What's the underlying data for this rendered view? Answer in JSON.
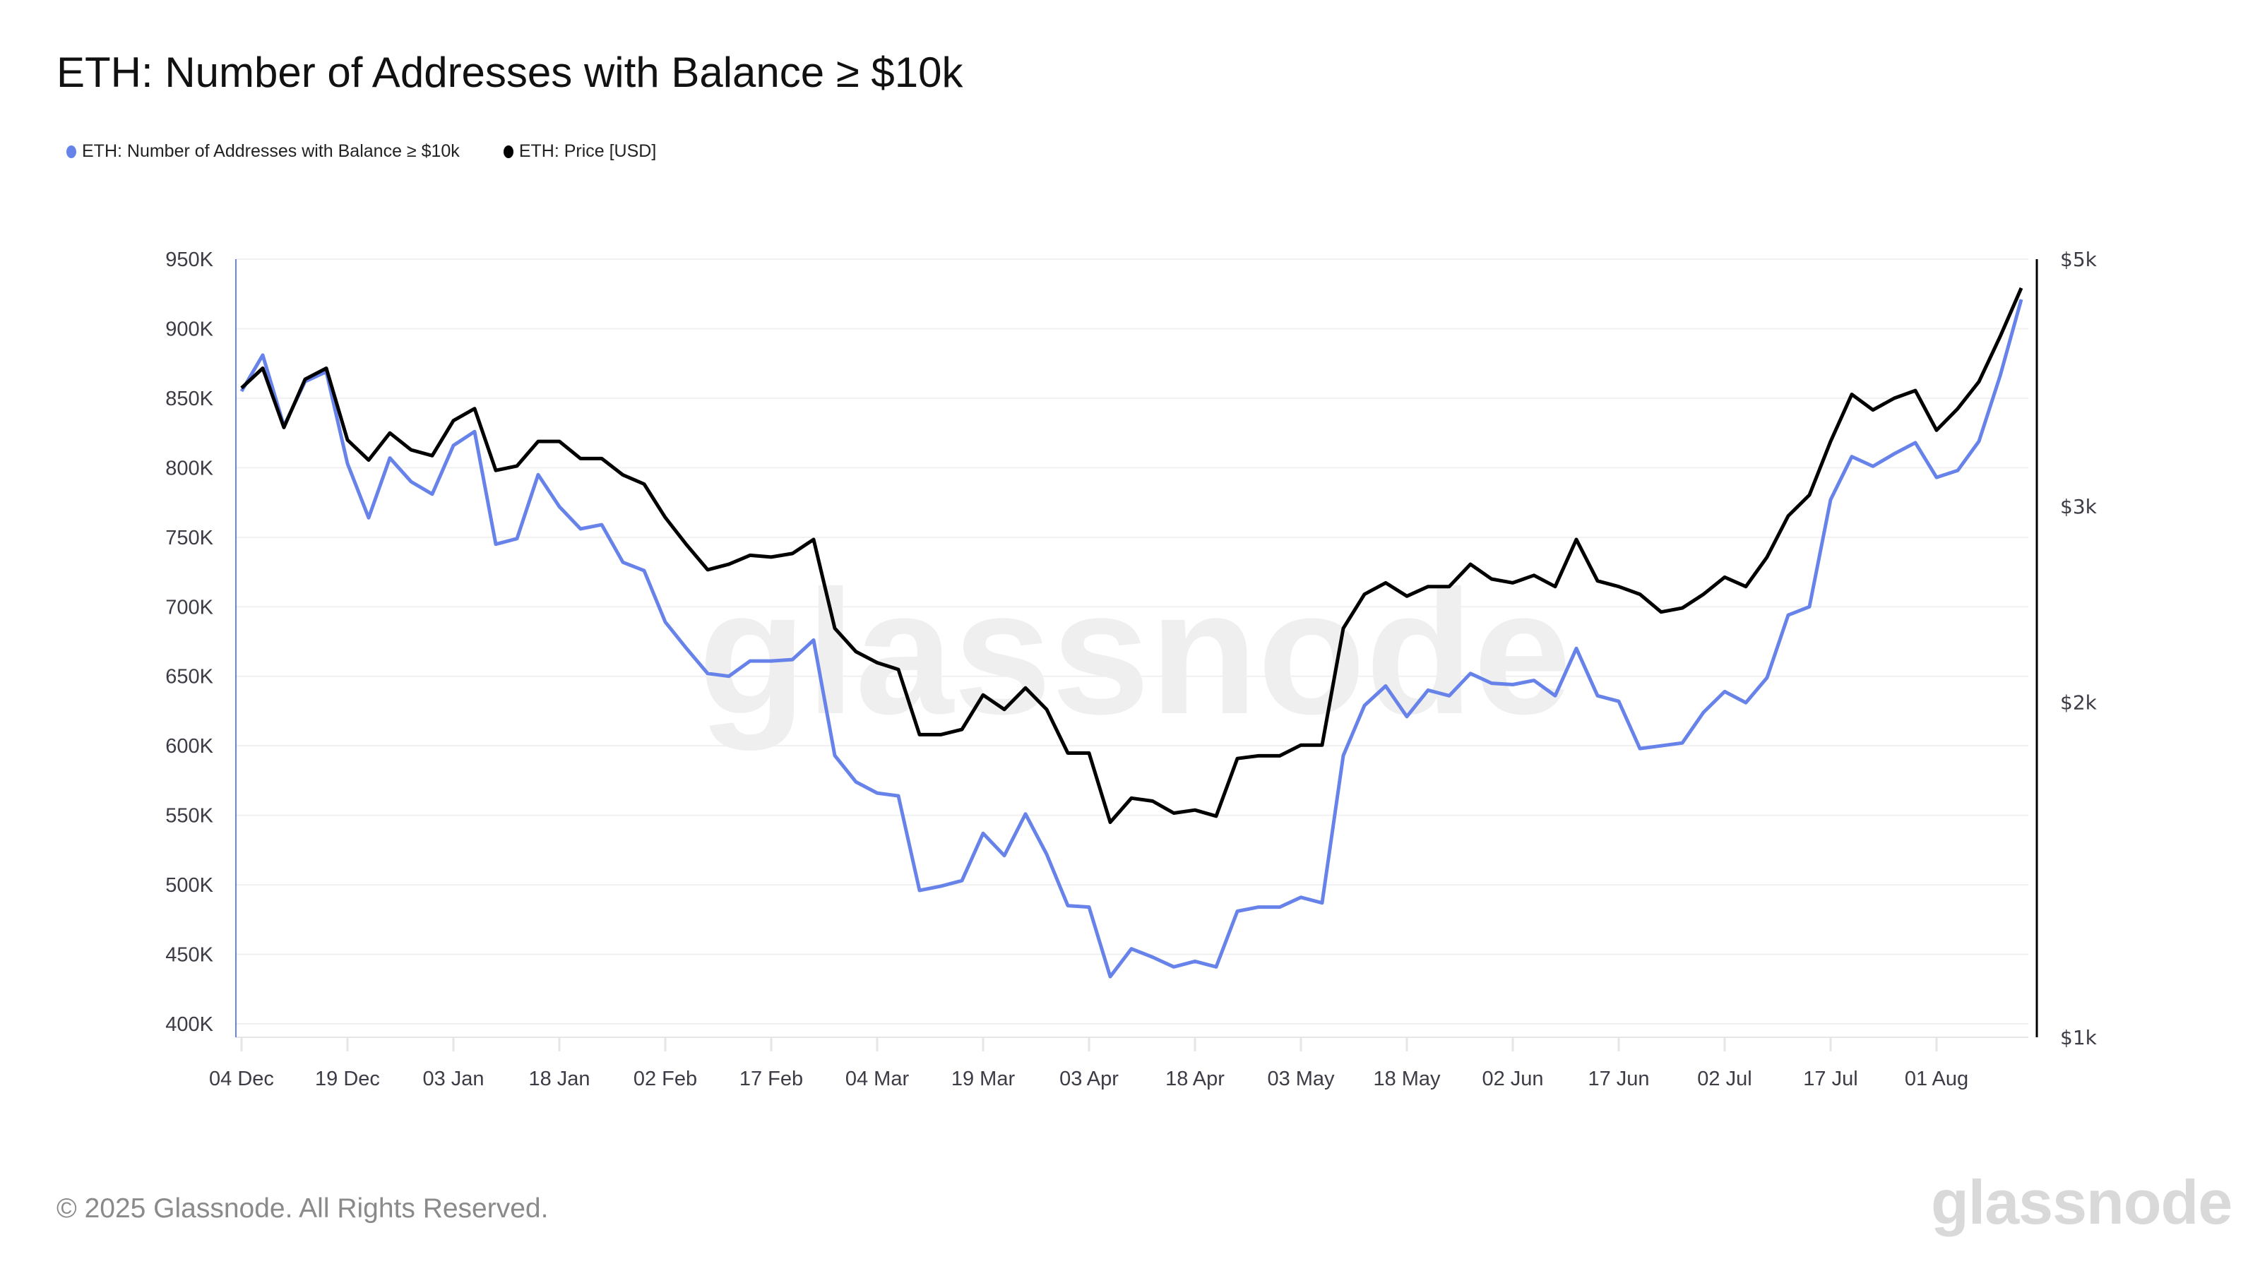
{
  "title": "ETH: Number of Addresses with Balance ≥ $10k",
  "legend": [
    {
      "label": "ETH: Number of Addresses with Balance ≥ $10k",
      "color": "#6783e9"
    },
    {
      "label": "ETH: Price [USD]",
      "color": "#000000"
    }
  ],
  "footer": "© 2025 Glassnode. All Rights Reserved.",
  "logo": "glassnode",
  "watermark": "glassnode",
  "chart_data": {
    "type": "line",
    "title": "ETH: Number of Addresses with Balance ≥ $10k",
    "grid": true,
    "legend_position": "top-left",
    "x_ticks": [
      "04 Dec",
      "19 Dec",
      "03 Jan",
      "18 Jan",
      "02 Feb",
      "17 Feb",
      "04 Mar",
      "19 Mar",
      "03 Apr",
      "18 Apr",
      "03 May",
      "18 May",
      "02 Jun",
      "17 Jun",
      "02 Jul",
      "17 Jul",
      "01 Aug"
    ],
    "x_tick_dates": [
      "2024-12-04",
      "2024-12-19",
      "2025-01-03",
      "2025-01-18",
      "2025-02-02",
      "2025-02-17",
      "2025-03-04",
      "2025-03-19",
      "2025-04-03",
      "2025-04-18",
      "2025-05-03",
      "2025-05-18",
      "2025-06-02",
      "2025-06-17",
      "2025-07-02",
      "2025-07-17",
      "2025-08-01"
    ],
    "y_left": {
      "ticks": [
        400,
        450,
        500,
        550,
        600,
        650,
        700,
        750,
        800,
        850,
        900,
        950
      ],
      "tick_labels": [
        "400K",
        "450K",
        "500K",
        "550K",
        "600K",
        "650K",
        "700K",
        "750K",
        "800K",
        "850K",
        "900K",
        "950K"
      ],
      "unit": "thousand addresses",
      "scale": "linear",
      "range": [
        390,
        950
      ]
    },
    "y_right": {
      "ticks": [
        1000,
        2000,
        3000,
        5000
      ],
      "tick_labels": [
        "$1k",
        "$2k",
        "$3k",
        "$5k"
      ],
      "scale": "log",
      "range": [
        1000,
        5000
      ]
    },
    "x": [
      "2024-12-04",
      "2024-12-07",
      "2024-12-10",
      "2024-12-13",
      "2024-12-16",
      "2024-12-19",
      "2024-12-22",
      "2024-12-25",
      "2024-12-28",
      "2024-12-31",
      "2025-01-03",
      "2025-01-06",
      "2025-01-09",
      "2025-01-12",
      "2025-01-15",
      "2025-01-18",
      "2025-01-21",
      "2025-01-24",
      "2025-01-27",
      "2025-01-30",
      "2025-02-02",
      "2025-02-05",
      "2025-02-08",
      "2025-02-11",
      "2025-02-14",
      "2025-02-17",
      "2025-02-20",
      "2025-02-23",
      "2025-02-26",
      "2025-03-01",
      "2025-03-04",
      "2025-03-07",
      "2025-03-10",
      "2025-03-13",
      "2025-03-16",
      "2025-03-19",
      "2025-03-22",
      "2025-03-25",
      "2025-03-28",
      "2025-03-31",
      "2025-04-03",
      "2025-04-06",
      "2025-04-09",
      "2025-04-12",
      "2025-04-15",
      "2025-04-18",
      "2025-04-21",
      "2025-04-24",
      "2025-04-27",
      "2025-04-30",
      "2025-05-03",
      "2025-05-06",
      "2025-05-09",
      "2025-05-12",
      "2025-05-15",
      "2025-05-18",
      "2025-05-21",
      "2025-05-24",
      "2025-05-27",
      "2025-05-30",
      "2025-06-02",
      "2025-06-05",
      "2025-06-08",
      "2025-06-11",
      "2025-06-14",
      "2025-06-17",
      "2025-06-20",
      "2025-06-23",
      "2025-06-26",
      "2025-06-29",
      "2025-07-02",
      "2025-07-05",
      "2025-07-08",
      "2025-07-11",
      "2025-07-14",
      "2025-07-17",
      "2025-07-20",
      "2025-07-23",
      "2025-07-26",
      "2025-07-29",
      "2025-08-01",
      "2025-08-04",
      "2025-08-07",
      "2025-08-10",
      "2025-08-13"
    ],
    "series": [
      {
        "name": "ETH: Number of Addresses with Balance ≥ $10k",
        "axis": "left",
        "color": "#6783e9",
        "values": [
          855,
          881,
          830,
          862,
          869,
          803,
          764,
          807,
          790,
          781,
          816,
          826,
          745,
          749,
          795,
          772,
          756,
          759,
          732,
          726,
          689,
          670,
          652,
          650,
          661,
          661,
          662,
          676,
          593,
          574,
          566,
          564,
          496,
          499,
          503,
          537,
          521,
          551,
          522,
          485,
          484,
          434,
          454,
          448,
          441,
          445,
          441,
          481,
          484,
          484,
          491,
          487,
          593,
          629,
          643,
          621,
          640,
          636,
          652,
          645,
          644,
          647,
          636,
          670,
          636,
          632,
          598,
          600,
          602,
          624,
          639,
          631,
          649,
          694,
          700,
          777,
          808,
          801,
          810,
          818,
          793,
          798,
          819,
          866,
          921
        ]
      },
      {
        "name": "ETH: Price [USD]",
        "axis": "right",
        "color": "#000000",
        "values": [
          3830,
          3990,
          3530,
          3900,
          3990,
          3440,
          3300,
          3490,
          3370,
          3330,
          3580,
          3670,
          3230,
          3260,
          3430,
          3430,
          3310,
          3310,
          3200,
          3140,
          2930,
          2770,
          2630,
          2660,
          2710,
          2700,
          2720,
          2800,
          2330,
          2220,
          2170,
          2140,
          1870,
          1870,
          1890,
          2030,
          1970,
          2060,
          1970,
          1800,
          1800,
          1560,
          1640,
          1630,
          1590,
          1600,
          1580,
          1780,
          1790,
          1790,
          1830,
          1830,
          2330,
          2500,
          2560,
          2490,
          2540,
          2540,
          2660,
          2580,
          2560,
          2600,
          2540,
          2800,
          2570,
          2540,
          2500,
          2410,
          2430,
          2500,
          2590,
          2540,
          2700,
          2940,
          3070,
          3430,
          3780,
          3660,
          3750,
          3810,
          3510,
          3670,
          3880,
          4260,
          4710
        ]
      }
    ]
  }
}
